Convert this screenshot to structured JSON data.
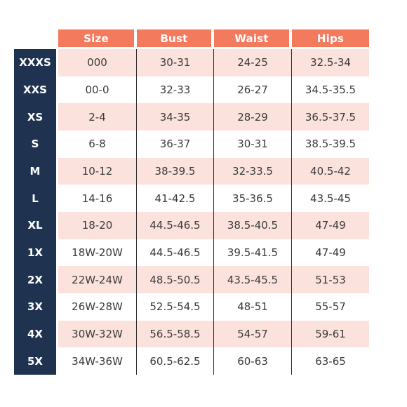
{
  "colors": {
    "header_bg": "#f47a5e",
    "size_col_bg": "#1f3350",
    "row_pink": "#fce2dd",
    "row_white": "#ffffff",
    "text": "#3a3a3a"
  },
  "headers": [
    "Size",
    "Bust",
    "Waist",
    "Hips"
  ],
  "rows": [
    {
      "label": "XXXS",
      "size": "000",
      "bust": "30-31",
      "waist": "24-25",
      "hips": "32.5-34"
    },
    {
      "label": "XXS",
      "size": "00-0",
      "bust": "32-33",
      "waist": "26-27",
      "hips": "34.5-35.5"
    },
    {
      "label": "XS",
      "size": "2-4",
      "bust": "34-35",
      "waist": "28-29",
      "hips": "36.5-37.5"
    },
    {
      "label": "S",
      "size": "6-8",
      "bust": "36-37",
      "waist": "30-31",
      "hips": "38.5-39.5"
    },
    {
      "label": "M",
      "size": "10-12",
      "bust": "38-39.5",
      "waist": "32-33.5",
      "hips": "40.5-42"
    },
    {
      "label": "L",
      "size": "14-16",
      "bust": "41-42.5",
      "waist": "35-36.5",
      "hips": "43.5-45"
    },
    {
      "label": "XL",
      "size": "18-20",
      "bust": "44.5-46.5",
      "waist": "38.5-40.5",
      "hips": "47-49"
    },
    {
      "label": "1X",
      "size": "18W-20W",
      "bust": "44.5-46.5",
      "waist": "39.5-41.5",
      "hips": "47-49"
    },
    {
      "label": "2X",
      "size": "22W-24W",
      "bust": "48.5-50.5",
      "waist": "43.5-45.5",
      "hips": "51-53"
    },
    {
      "label": "3X",
      "size": "26W-28W",
      "bust": "52.5-54.5",
      "waist": "48-51",
      "hips": "55-57"
    },
    {
      "label": "4X",
      "size": "30W-32W",
      "bust": "56.5-58.5",
      "waist": "54-57",
      "hips": "59-61"
    },
    {
      "label": "5X",
      "size": "34W-36W",
      "bust": "60.5-62.5",
      "waist": "60-63",
      "hips": "63-65"
    }
  ]
}
